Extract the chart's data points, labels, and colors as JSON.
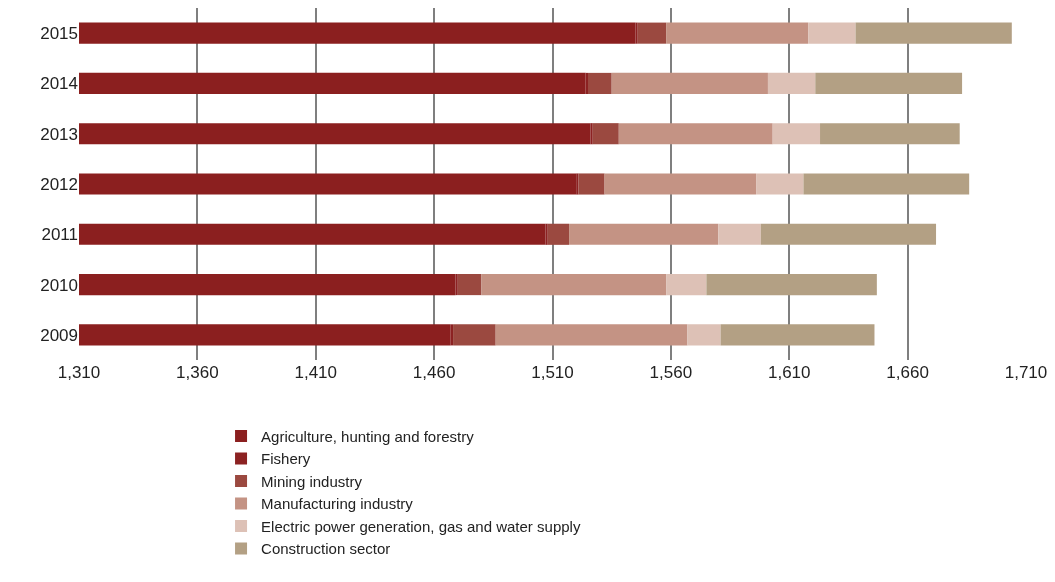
{
  "chart_data": {
    "type": "bar",
    "orientation": "horizontal",
    "stacked": true,
    "categories": [
      "2015",
      "2014",
      "2013",
      "2012",
      "2011",
      "2010",
      "2009"
    ],
    "series": [
      {
        "name": "Agriculture, hunting and forestry",
        "color": "#8b1f1f",
        "values": [
          1545,
          1524,
          1526,
          1520,
          1507,
          1469,
          1467
        ]
      },
      {
        "name": "Fishery",
        "color": "#8c2222",
        "base": [
          1545,
          1524,
          1526,
          1520,
          1507,
          1469,
          1467
        ],
        "values": [
          1,
          1,
          1,
          1,
          1,
          1,
          1
        ]
      },
      {
        "name": "Mining industry",
        "color": "#9b4940",
        "base": [
          1546,
          1525,
          1527,
          1521,
          1508,
          1470,
          1468
        ],
        "values": [
          12,
          10,
          11,
          11,
          9,
          10,
          18
        ]
      },
      {
        "name": "Manufacturing industry",
        "color": "#c49384",
        "base": [
          1558,
          1535,
          1538,
          1532,
          1517,
          1480,
          1486
        ],
        "values": [
          60,
          66,
          65,
          64,
          63,
          78,
          81
        ]
      },
      {
        "name": "Electric power generation, gas and water supply",
        "color": "#ddc1b6",
        "base": [
          1618,
          1601,
          1603,
          1596,
          1580,
          1558,
          1567
        ],
        "values": [
          20,
          20,
          20,
          20,
          18,
          17,
          14
        ]
      },
      {
        "name": "Construction sector",
        "color": "#b3a084",
        "base": [
          1638,
          1621,
          1623,
          1616,
          1598,
          1575,
          1581
        ],
        "values": [
          66,
          62,
          59,
          70,
          74,
          72,
          65
        ]
      }
    ],
    "xlim": [
      1310,
      1710
    ],
    "xticks": [
      {
        "value": 1310,
        "label": "1,310"
      },
      {
        "value": 1360,
        "label": "1,360"
      },
      {
        "value": 1410,
        "label": "1,410"
      },
      {
        "value": 1460,
        "label": "1,460"
      },
      {
        "value": 1510,
        "label": "1,510"
      },
      {
        "value": 1560,
        "label": "1,560"
      },
      {
        "value": 1610,
        "label": "1,610"
      },
      {
        "value": 1660,
        "label": "1,660"
      },
      {
        "value": 1710,
        "label": "1,710"
      }
    ],
    "grid": "x",
    "legend": "bottom"
  }
}
